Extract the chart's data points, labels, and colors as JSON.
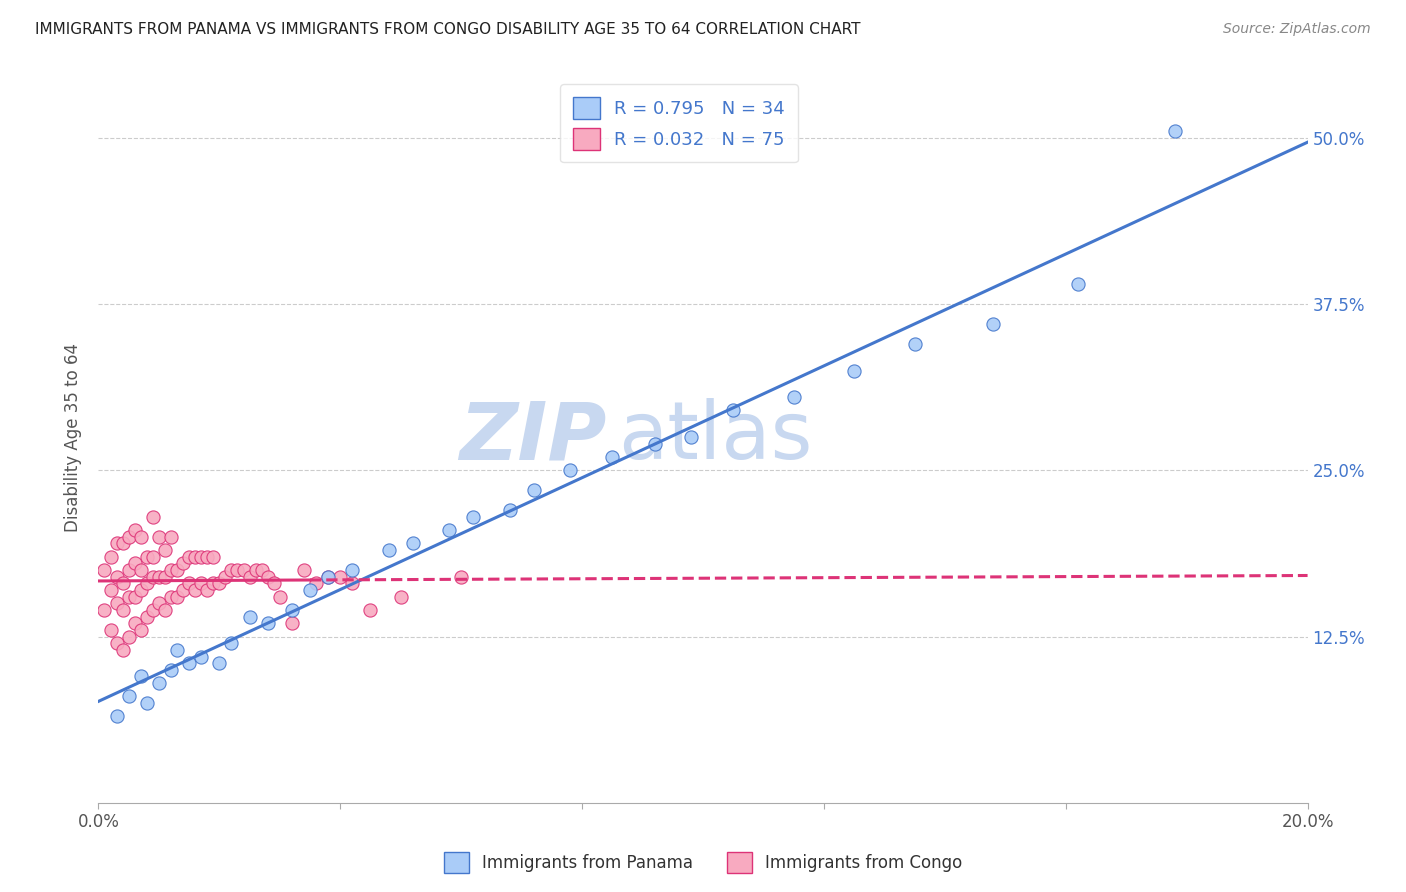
{
  "title": "IMMIGRANTS FROM PANAMA VS IMMIGRANTS FROM CONGO DISABILITY AGE 35 TO 64 CORRELATION CHART",
  "source": "Source: ZipAtlas.com",
  "ylabel": "Disability Age 35 to 64",
  "xlim": [
    0.0,
    0.2
  ],
  "ylim": [
    0.0,
    0.55
  ],
  "panama_color": "#aaccf8",
  "panama_line_color": "#4477cc",
  "congo_color": "#f8aac0",
  "congo_line_color": "#dd3377",
  "r_panama": 0.795,
  "n_panama": 34,
  "r_congo": 0.032,
  "n_congo": 75,
  "watermark_zip": "ZIP",
  "watermark_atlas": "atlas",
  "watermark_color": "#c8d8f0",
  "panama_scatter_x": [
    0.003,
    0.005,
    0.007,
    0.008,
    0.01,
    0.012,
    0.013,
    0.015,
    0.017,
    0.02,
    0.022,
    0.025,
    0.028,
    0.032,
    0.035,
    0.038,
    0.042,
    0.048,
    0.052,
    0.058,
    0.062,
    0.068,
    0.072,
    0.078,
    0.085,
    0.092,
    0.098,
    0.105,
    0.115,
    0.125,
    0.135,
    0.148,
    0.162,
    0.178
  ],
  "panama_scatter_y": [
    0.065,
    0.08,
    0.095,
    0.075,
    0.09,
    0.1,
    0.115,
    0.105,
    0.11,
    0.105,
    0.12,
    0.14,
    0.135,
    0.145,
    0.16,
    0.17,
    0.175,
    0.19,
    0.195,
    0.205,
    0.215,
    0.22,
    0.235,
    0.25,
    0.26,
    0.27,
    0.275,
    0.295,
    0.305,
    0.325,
    0.345,
    0.36,
    0.39,
    0.505
  ],
  "congo_scatter_x": [
    0.001,
    0.001,
    0.002,
    0.002,
    0.002,
    0.003,
    0.003,
    0.003,
    0.003,
    0.004,
    0.004,
    0.004,
    0.004,
    0.005,
    0.005,
    0.005,
    0.005,
    0.006,
    0.006,
    0.006,
    0.006,
    0.007,
    0.007,
    0.007,
    0.007,
    0.008,
    0.008,
    0.008,
    0.009,
    0.009,
    0.009,
    0.009,
    0.01,
    0.01,
    0.01,
    0.011,
    0.011,
    0.011,
    0.012,
    0.012,
    0.012,
    0.013,
    0.013,
    0.014,
    0.014,
    0.015,
    0.015,
    0.016,
    0.016,
    0.017,
    0.017,
    0.018,
    0.018,
    0.019,
    0.019,
    0.02,
    0.021,
    0.022,
    0.023,
    0.024,
    0.025,
    0.026,
    0.027,
    0.028,
    0.029,
    0.03,
    0.032,
    0.034,
    0.036,
    0.038,
    0.04,
    0.042,
    0.045,
    0.05,
    0.06
  ],
  "congo_scatter_y": [
    0.145,
    0.175,
    0.13,
    0.16,
    0.185,
    0.12,
    0.15,
    0.17,
    0.195,
    0.115,
    0.145,
    0.165,
    0.195,
    0.125,
    0.155,
    0.175,
    0.2,
    0.135,
    0.155,
    0.18,
    0.205,
    0.13,
    0.16,
    0.175,
    0.2,
    0.14,
    0.165,
    0.185,
    0.145,
    0.17,
    0.185,
    0.215,
    0.15,
    0.17,
    0.2,
    0.145,
    0.17,
    0.19,
    0.155,
    0.175,
    0.2,
    0.155,
    0.175,
    0.16,
    0.18,
    0.165,
    0.185,
    0.16,
    0.185,
    0.165,
    0.185,
    0.16,
    0.185,
    0.165,
    0.185,
    0.165,
    0.17,
    0.175,
    0.175,
    0.175,
    0.17,
    0.175,
    0.175,
    0.17,
    0.165,
    0.155,
    0.135,
    0.175,
    0.165,
    0.17,
    0.17,
    0.165,
    0.145,
    0.155,
    0.17
  ]
}
